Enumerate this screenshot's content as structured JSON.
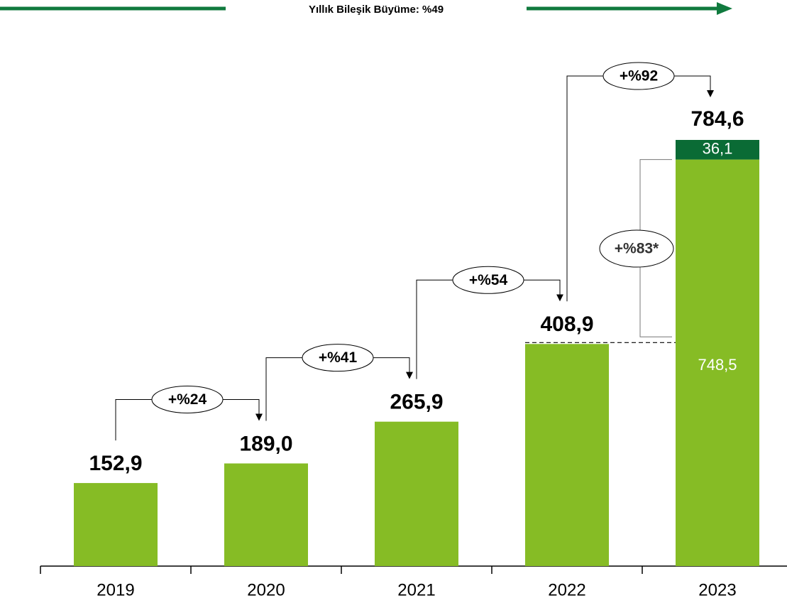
{
  "chart_data": {
    "type": "bar",
    "stacked": true,
    "title": "Yıllık Bileşik Büyüme: %49",
    "categories": [
      "2019",
      "2020",
      "2021",
      "2022",
      "2023"
    ],
    "series": [
      {
        "color": "#86bc25",
        "values": [
          152.9,
          189.0,
          265.9,
          408.9,
          748.5
        ],
        "value_labels": [
          "152,9",
          "189,0",
          "265,9",
          "408,9",
          "748,5"
        ]
      },
      {
        "color": "#0a6b35",
        "values": [
          null,
          null,
          null,
          null,
          36.1
        ],
        "value_labels": [
          null,
          null,
          null,
          null,
          "36,1"
        ]
      }
    ],
    "total_label": {
      "value": 784.6,
      "label": "784,6"
    },
    "growth_labels": [
      "+%24",
      "+%41",
      "+%54",
      "+%92"
    ],
    "core_growth_label": "+%83*"
  }
}
